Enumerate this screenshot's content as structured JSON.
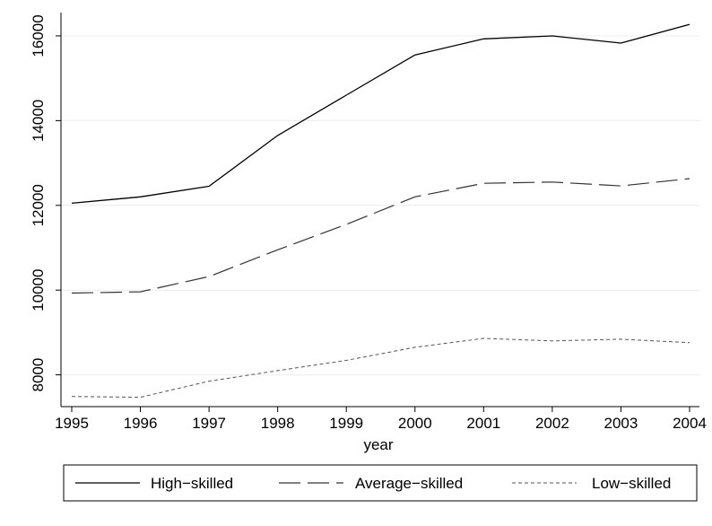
{
  "chart_data": {
    "type": "line",
    "xlabel": "year",
    "ylabel": "",
    "x": [
      1995,
      1996,
      1997,
      1998,
      1999,
      2000,
      2001,
      2002,
      2003,
      2004
    ],
    "x_ticks": [
      "1995",
      "1996",
      "1997",
      "1998",
      "1999",
      "2000",
      "2001",
      "2002",
      "2003",
      "2004"
    ],
    "y_ticks": [
      "8000",
      "10000",
      "12000",
      "14000",
      "16000"
    ],
    "y_tick_values": [
      8000,
      10000,
      12000,
      14000,
      16000
    ],
    "xlim": [
      1995,
      2004
    ],
    "ylim": [
      7250,
      16550
    ],
    "grid": "horizontal",
    "legend_position": "bottom",
    "series": [
      {
        "name": "High−skilled",
        "style": "solid",
        "color": "#000000",
        "values": [
          12050,
          12200,
          12450,
          13650,
          14600,
          15550,
          15930,
          16000,
          15830,
          16270
        ]
      },
      {
        "name": "Average−skilled",
        "style": "long-dash",
        "color": "#333333",
        "values": [
          9930,
          9960,
          10320,
          10950,
          11550,
          12200,
          12520,
          12550,
          12460,
          12630
        ]
      },
      {
        "name": "Low−skilled",
        "style": "short-dash",
        "color": "#555555",
        "values": [
          7490,
          7470,
          7850,
          8100,
          8340,
          8650,
          8860,
          8800,
          8840,
          8760
        ]
      }
    ]
  }
}
